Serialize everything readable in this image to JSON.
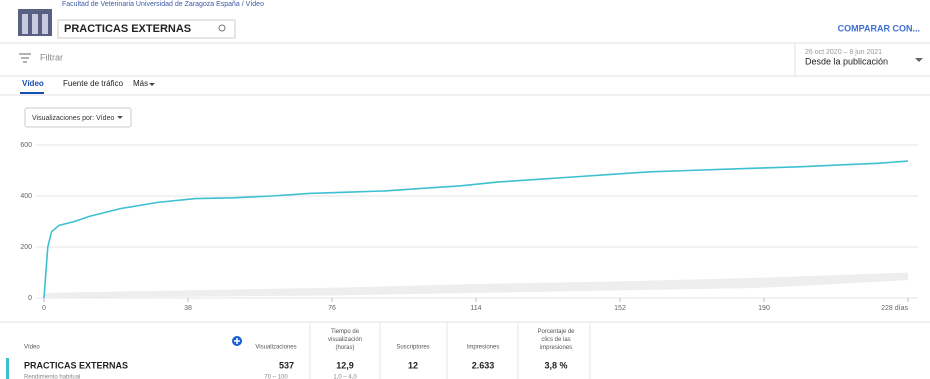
{
  "header": {
    "breadcrumb": "Facultad de Veterinaria Universidad de Zaragoza España / Vídeo",
    "search": "PRACTICAS EXTERNAS",
    "compare": "COMPARAR CON...",
    "filter": "Filtrar",
    "date_range": "26 oct 2020 – 8 jun 2021",
    "period": "Desde la publicación"
  },
  "tabs": [
    "Vídeo",
    "Fuente de tráfico",
    "Más"
  ],
  "dropdown": "Visualizaciones por: Vídeo",
  "chart_data": {
    "type": "line",
    "x": [
      0,
      1,
      2,
      4,
      8,
      12,
      20,
      30,
      40,
      50,
      60,
      70,
      80,
      90,
      100,
      110,
      120,
      130,
      140,
      150,
      160,
      170,
      180,
      190,
      200,
      210,
      220,
      228
    ],
    "series": [
      {
        "name": "PRACTICAS EXTERNAS",
        "color": "#3ec0d1",
        "values": [
          0,
          200,
          260,
          285,
          300,
          320,
          350,
          375,
          390,
          393,
          400,
          410,
          415,
          420,
          430,
          440,
          455,
          465,
          475,
          485,
          495,
          500,
          505,
          510,
          515,
          522,
          528,
          537
        ]
      }
    ],
    "band": {
      "color": "#eeeeee",
      "x": [
        0,
        38,
        76,
        114,
        152,
        190,
        228
      ],
      "low": [
        0,
        5,
        10,
        20,
        30,
        40,
        70
      ],
      "high": [
        20,
        30,
        40,
        55,
        65,
        80,
        100
      ]
    },
    "xlim": [
      0,
      228
    ],
    "xticks": [
      0,
      38,
      76,
      114,
      152,
      190,
      {
        "value": 228,
        "label": "228 días"
      }
    ],
    "ylim": [
      0,
      600
    ],
    "yticks": [
      0,
      200,
      400,
      600
    ],
    "grid": true
  },
  "table": {
    "headers": [
      "Vídeo",
      "Visualizaciones",
      "Tiempo de visualización (horas)",
      "Suscriptores",
      "Impresiones",
      "Porcentaje de clics de las impresiones"
    ],
    "rows": [
      [
        "PRACTICAS EXTERNAS",
        "537",
        "12,9",
        "12",
        "2.633",
        "3,8 %"
      ]
    ],
    "typical": [
      "Rendimiento habitual",
      "70 – 100",
      "1,0 – 4,0"
    ]
  }
}
